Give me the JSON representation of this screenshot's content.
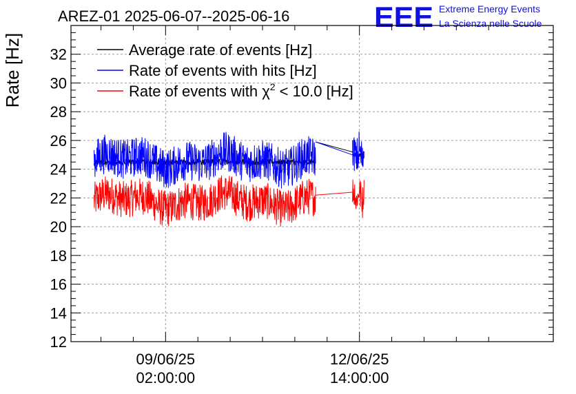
{
  "title": "AREZ-01 2025-06-07--2025-06-16",
  "logo": {
    "mark": "EEE",
    "line1": "Extreme Energy Events",
    "line2": "La Scienza nelle Scuole",
    "color": "#1010e0"
  },
  "chart_data": {
    "type": "line",
    "ylabel": "Rate [Hz]",
    "xlabel": "",
    "ylim": [
      12,
      34
    ],
    "yticks": [
      12,
      14,
      16,
      18,
      20,
      22,
      24,
      26,
      28,
      30,
      32
    ],
    "xlim": [
      "2025-06-07 09:00",
      "2025-06-16 02:00"
    ],
    "xticks": [
      {
        "x": "2025-06-09 02:00",
        "date": "09/06/25",
        "time": "02:00:00"
      },
      {
        "x": "2025-06-12 14:00",
        "date": "12/06/25",
        "time": "14:00:00"
      }
    ],
    "grid": true,
    "legend_position": "top-left",
    "series": [
      {
        "name": "Average rate of events [Hz]",
        "color": "#000000",
        "segments": [
          {
            "from": "2025-06-07 19:00",
            "to": "2025-06-11 19:00",
            "mean": 24.5
          },
          {
            "from": "2025-06-11 19:00",
            "to": "2025-06-12 11:00",
            "mean_start": 25.9,
            "mean_end": 25.2
          },
          {
            "from": "2025-06-12 11:00",
            "to": "2025-06-12 16:00",
            "mean": 25.0
          }
        ]
      },
      {
        "name": "Rate of events with hits [Hz]",
        "color": "#0000ff",
        "segments": [
          {
            "from": "2025-06-07 19:00",
            "to": "2025-06-11 19:00",
            "mean": 24.6,
            "spread": 1.4
          },
          {
            "from": "2025-06-11 19:00",
            "to": "2025-06-12 11:00",
            "mean_start": 25.9,
            "mean_end": 25.0
          },
          {
            "from": "2025-06-12 11:00",
            "to": "2025-06-12 16:00",
            "mean": 25.0,
            "spread": 1.3
          }
        ]
      },
      {
        "name": "Rate of events with χ² < 10.0 [Hz]",
        "color": "#ff0000",
        "segments": [
          {
            "from": "2025-06-07 19:00",
            "to": "2025-06-11 19:00",
            "mean": 21.8,
            "spread": 1.3
          },
          {
            "from": "2025-06-11 19:00",
            "to": "2025-06-12 11:00",
            "mean_start": 22.2,
            "mean_end": 22.4
          },
          {
            "from": "2025-06-12 11:00",
            "to": "2025-06-12 16:00",
            "mean": 22.2,
            "spread": 1.1
          }
        ]
      }
    ]
  }
}
